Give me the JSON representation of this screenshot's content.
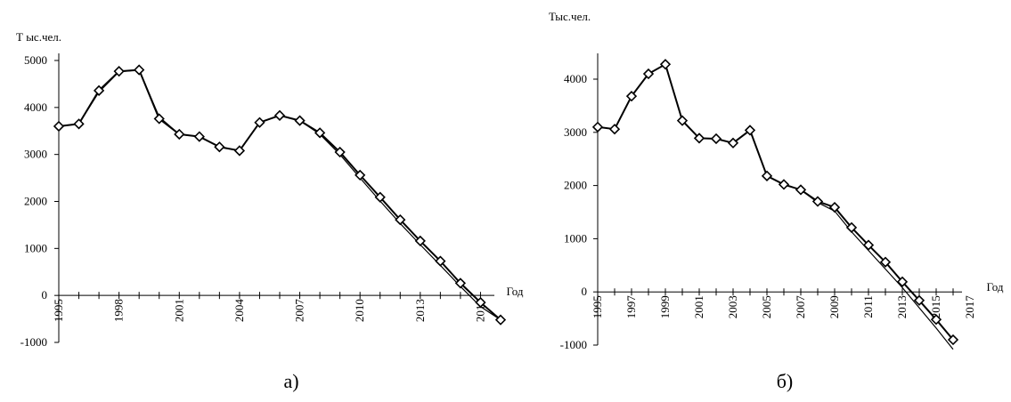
{
  "chart_data": [
    {
      "type": "line",
      "caption": "а)",
      "ylabel": "Т ыс.чел.",
      "xlabel": "Год",
      "ylim": [
        -1000,
        5000
      ],
      "yticks": [
        "5000",
        "4000",
        "3000",
        "2000",
        "1000",
        "0",
        "-1000"
      ],
      "xticks": [
        "1995",
        "1998",
        "2001",
        "2004",
        "2007",
        "2010",
        "2013",
        "2016"
      ],
      "series": [
        {
          "x": [
            1995,
            1996,
            1997,
            1998,
            1999,
            2000,
            2001,
            2002,
            2003,
            2004,
            2005,
            2006,
            2007,
            2008,
            2009,
            2010,
            2011,
            2012,
            2013,
            2014,
            2015,
            2016,
            2017
          ],
          "values": [
            3600,
            3650,
            4360,
            4770,
            4800,
            3760,
            3430,
            3380,
            3160,
            3080,
            3680,
            3830,
            3720,
            3460,
            3050,
            2560,
            2090,
            1610,
            1160,
            730,
            260,
            -150,
            -520
          ]
        },
        {
          "x": [
            1995,
            1996,
            1997,
            1998,
            1999,
            2000,
            2001,
            2002,
            2003,
            2004,
            2005,
            2006,
            2007,
            2008,
            2009,
            2010,
            2011,
            2012,
            2013,
            2014,
            2015,
            2016,
            2017
          ],
          "values": [
            3600,
            3650,
            4330,
            4760,
            4800,
            3800,
            3430,
            3380,
            3160,
            3080,
            3680,
            3830,
            3720,
            3430,
            3000,
            2500,
            2010,
            1530,
            1080,
            640,
            190,
            -240,
            -520
          ]
        }
      ]
    },
    {
      "type": "line",
      "caption": "б)",
      "ylabel": "Тыс.чел.",
      "xlabel": "Год",
      "ylim": [
        -1000,
        4500
      ],
      "yticks": [
        "4000",
        "3000",
        "2000",
        "1000",
        "0",
        "-1000"
      ],
      "xticks": [
        "1995",
        "1997",
        "1999",
        "2001",
        "2003",
        "2005",
        "2007",
        "2009",
        "2011",
        "2013",
        "2015",
        "2017"
      ],
      "series": [
        {
          "x": [
            1995,
            1996,
            1997,
            1998,
            1999,
            2000,
            2001,
            2002,
            2003,
            2004,
            2005,
            2006,
            2007,
            2008,
            2009,
            2010,
            2011,
            2012,
            2013,
            2014,
            2015,
            2016
          ],
          "values": [
            3100,
            3060,
            3680,
            4100,
            4280,
            3220,
            2890,
            2880,
            2800,
            3040,
            2180,
            2020,
            1920,
            1700,
            1590,
            1210,
            880,
            560,
            190,
            -160,
            -520,
            -900
          ]
        },
        {
          "x": [
            1995,
            1996,
            1997,
            1998,
            1999,
            2000,
            2001,
            2002,
            2003,
            2004,
            2005,
            2006,
            2007,
            2008,
            2009,
            2010,
            2011,
            2012,
            2013,
            2014,
            2015,
            2016
          ],
          "values": [
            3100,
            3060,
            3680,
            4100,
            4280,
            3220,
            2890,
            2880,
            2800,
            3040,
            2180,
            2020,
            1920,
            1680,
            1520,
            1130,
            780,
            430,
            80,
            -300,
            -680,
            -1080
          ]
        }
      ]
    }
  ]
}
